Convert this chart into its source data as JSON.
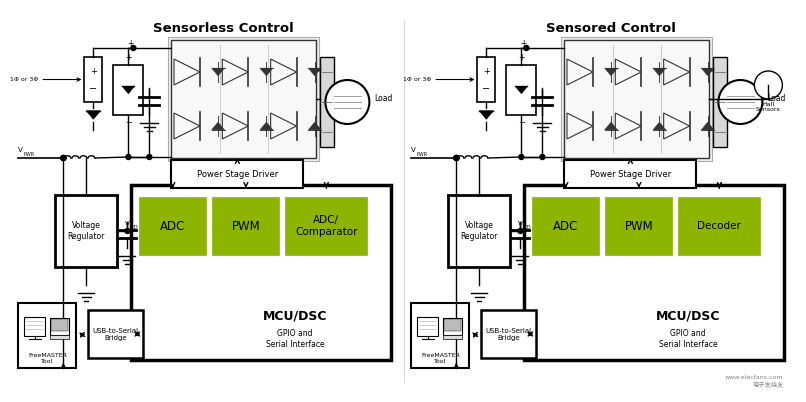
{
  "bg_color": "#ffffff",
  "green": "#8DB500",
  "black": "#000000",
  "dark_gray": "#333333",
  "mid_gray": "#666666",
  "light_gray": "#cccccc",
  "box_gray": "#f0f0f0",
  "left_title": "Sensorless Control",
  "right_title": "Sensored Control",
  "mcu_label": "MCU/DSC",
  "gpio_label": "GPIO and\nSerial Interface",
  "adc_label": "ADC",
  "pwm_label": "PWM",
  "left_third_label": "ADC/\nComparator",
  "right_third_label": "Decoder",
  "vr_label": "Voltage\nRegulator",
  "usb_label": "USB-to-Serial\nBridge",
  "fm_label": "FreeMASTER\nTool",
  "psd_label": "Power Stage Driver",
  "load_label": "Load",
  "hall_label": "Hall\nSensors",
  "vpwr_label": "V",
  "vpwr_sub": "PWR",
  "vdd_label": "V",
  "vdd_sub": "DD",
  "phase_label": "1Φ or 3Φ",
  "watermark1": "电子发烧友",
  "watermark2": "www.elecfans.com"
}
